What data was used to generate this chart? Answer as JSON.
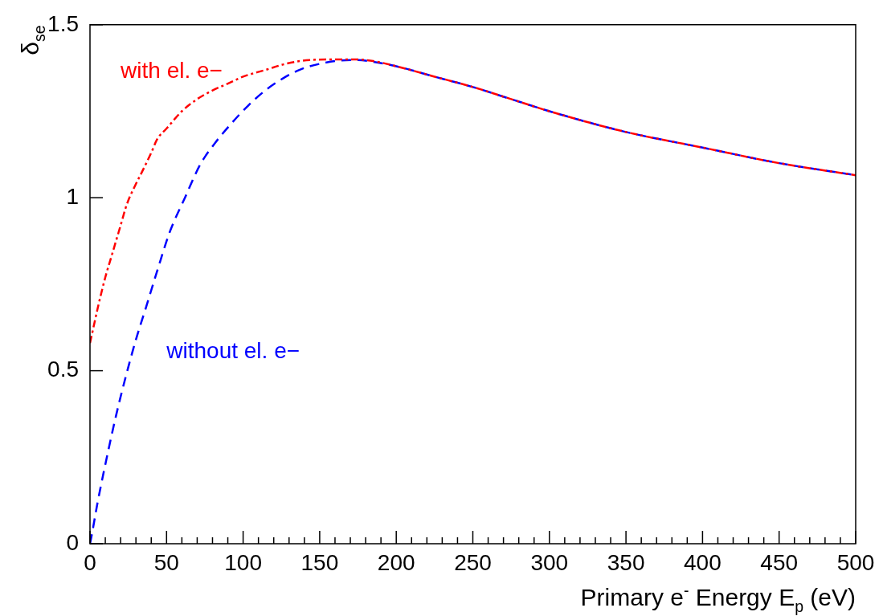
{
  "chart_data": {
    "type": "line",
    "xlabel": "Primary e$^{-}$ Energy E$_{p}$ (eV)",
    "ylabel": "δ$_{se}$",
    "xlim": [
      0,
      500
    ],
    "ylim": [
      0,
      1.5
    ],
    "xticks": [
      0,
      {
        "value": 10,
        "label": null
      },
      {
        "value": 20,
        "label": null
      },
      {
        "value": 30,
        "label": null
      },
      {
        "value": 40,
        "label": null
      },
      50,
      {
        "value": 60,
        "label": null
      },
      {
        "value": 70,
        "label": null
      },
      {
        "value": 80,
        "label": null
      },
      {
        "value": 90,
        "label": null
      },
      100,
      {
        "value": 110,
        "label": null
      },
      {
        "value": 120,
        "label": null
      },
      {
        "value": 130,
        "label": null
      },
      {
        "value": 140,
        "label": null
      },
      150,
      {
        "value": 160,
        "label": null
      },
      {
        "value": 170,
        "label": null
      },
      {
        "value": 180,
        "label": null
      },
      {
        "value": 190,
        "label": null
      },
      200,
      {
        "value": 210,
        "label": null
      },
      {
        "value": 220,
        "label": null
      },
      {
        "value": 230,
        "label": null
      },
      {
        "value": 240,
        "label": null
      },
      250,
      {
        "value": 260,
        "label": null
      },
      {
        "value": 270,
        "label": null
      },
      {
        "value": 280,
        "label": null
      },
      {
        "value": 290,
        "label": null
      },
      300,
      {
        "value": 310,
        "label": null
      },
      {
        "value": 320,
        "label": null
      },
      {
        "value": 330,
        "label": null
      },
      {
        "value": 340,
        "label": null
      },
      350,
      {
        "value": 360,
        "label": null
      },
      {
        "value": 370,
        "label": null
      },
      {
        "value": 380,
        "label": null
      },
      {
        "value": 390,
        "label": null
      },
      400,
      {
        "value": 410,
        "label": null
      },
      {
        "value": 420,
        "label": null
      },
      {
        "value": 430,
        "label": null
      },
      {
        "value": 440,
        "label": null
      },
      450,
      {
        "value": 460,
        "label": null
      },
      {
        "value": 470,
        "label": null
      },
      {
        "value": 480,
        "label": null
      },
      {
        "value": 490,
        "label": null
      },
      500
    ],
    "yticks": [
      0,
      0.5,
      1,
      1.5
    ],
    "grid": false,
    "legend": false,
    "marker": "none",
    "series": [
      {
        "name": "with el. e−",
        "color": "#ff0000",
        "line_style": "dotted",
        "x": [
          0,
          2,
          5,
          10,
          14,
          20,
          24,
          30,
          34,
          40,
          44,
          50,
          60,
          70,
          80,
          90,
          100,
          115,
          126,
          137,
          148,
          160,
          171,
          185,
          200,
          225,
          250,
          275,
          300,
          350,
          400,
          450,
          500
        ],
        "values": [
          0.58,
          0.62,
          0.68,
          0.77,
          0.83,
          0.92,
          0.98,
          1.04,
          1.075,
          1.13,
          1.17,
          1.2,
          1.25,
          1.285,
          1.31,
          1.33,
          1.35,
          1.37,
          1.385,
          1.395,
          1.399,
          1.4,
          1.4,
          1.395,
          1.38,
          1.35,
          1.32,
          1.285,
          1.25,
          1.19,
          1.145,
          1.1,
          1.065
        ]
      },
      {
        "name": "without el. e−",
        "color": "#0000ff",
        "line_style": "dashed",
        "x": [
          0,
          0.5,
          5,
          11.5,
          17,
          22.6,
          30,
          36,
          44,
          52,
          62,
          72,
          82,
          92,
          103,
          115,
          126,
          137,
          150,
          164,
          175,
          185,
          200,
          225,
          250,
          275,
          300,
          350,
          400,
          450,
          500
        ],
        "values": [
          0,
          0.01,
          0.12,
          0.26,
          0.37,
          0.47,
          0.59,
          0.675,
          0.79,
          0.9,
          1.0,
          1.096,
          1.16,
          1.213,
          1.265,
          1.312,
          1.345,
          1.37,
          1.387,
          1.397,
          1.398,
          1.393,
          1.38,
          1.35,
          1.32,
          1.285,
          1.25,
          1.19,
          1.145,
          1.1,
          1.065
        ]
      }
    ]
  }
}
